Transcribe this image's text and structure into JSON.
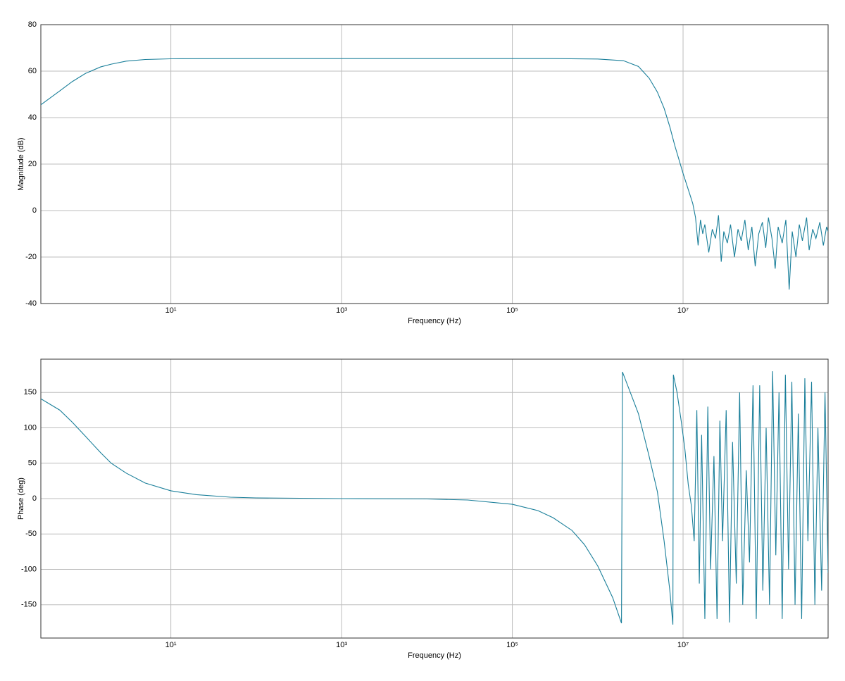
{
  "chart_data": [
    {
      "type": "line",
      "x_label": "Frequency (Hz)",
      "y_label": "Magnitude (dB)",
      "log_x": true,
      "grid": true,
      "xlim": [
        0.3,
        500000000
      ],
      "ylim": [
        -40,
        80
      ],
      "xticks": [
        {
          "value": 10,
          "label": "10¹"
        },
        {
          "value": 1000,
          "label": "10³"
        },
        {
          "value": 100000,
          "label": "10⁵"
        },
        {
          "value": 10000000,
          "label": "10⁷"
        }
      ],
      "yticks": [
        -40,
        -20,
        0,
        20,
        40,
        60,
        80
      ],
      "x": [
        0.3,
        0.5,
        0.7,
        1,
        1.5,
        2,
        3,
        5,
        10,
        100,
        1000,
        10000,
        100000,
        300000,
        1000000,
        2000000,
        3000000,
        4000000,
        5000000,
        6000000,
        7000000,
        8000000,
        10000000,
        12000000,
        13000000,
        14000000,
        15000000,
        16000000,
        17000000,
        18000000,
        20000000,
        22000000,
        24000000,
        26000000,
        28000000,
        30000000,
        33000000,
        36000000,
        40000000,
        44000000,
        48000000,
        53000000,
        58000000,
        64000000,
        70000000,
        77000000,
        85000000,
        93000000,
        100000000,
        110000000,
        120000000,
        130000000,
        145000000,
        160000000,
        175000000,
        190000000,
        210000000,
        230000000,
        250000000,
        280000000,
        300000000,
        330000000,
        360000000,
        400000000,
        440000000,
        480000000,
        500000000
      ],
      "series": [
        {
          "color": "#1a7f9a",
          "values": [
            45.5,
            51.5,
            55.5,
            59,
            61.8,
            63,
            64.3,
            65,
            65.3,
            65.4,
            65.4,
            65.4,
            65.4,
            65.4,
            65.2,
            64.5,
            62,
            57,
            51,
            44,
            36,
            28,
            16,
            7,
            3,
            -3,
            -15,
            -4,
            -10,
            -6,
            -18,
            -8,
            -12,
            -2,
            -22,
            -9,
            -14,
            -6,
            -20,
            -8,
            -13,
            -4,
            -17,
            -7,
            -24,
            -10,
            -5,
            -16,
            -3,
            -12,
            -25,
            -7,
            -14,
            -4,
            -34,
            -9,
            -20,
            -6,
            -13,
            -3,
            -17,
            -8,
            -12,
            -5,
            -15,
            -7,
            -9
          ]
        }
      ]
    },
    {
      "type": "line",
      "x_label": "Frequency (Hz)",
      "y_label": "Phase (deg)",
      "log_x": true,
      "grid": true,
      "xlim": [
        0.3,
        500000000
      ],
      "ylim": [
        -197,
        197
      ],
      "xticks": [
        {
          "value": 10,
          "label": "10¹"
        },
        {
          "value": 1000,
          "label": "10³"
        },
        {
          "value": 100000,
          "label": "10⁵"
        },
        {
          "value": 10000000,
          "label": "10⁷"
        }
      ],
      "yticks": [
        -150,
        -100,
        -50,
        0,
        50,
        100,
        150
      ],
      "x": [
        0.3,
        0.5,
        0.7,
        1,
        1.5,
        2,
        3,
        5,
        10,
        20,
        50,
        100,
        1000,
        10000,
        30000,
        100000,
        200000,
        300000,
        500000,
        700000,
        1000000,
        1500000,
        1900000,
        1950000,
        3000000,
        4000000,
        5000000,
        6000000,
        7000000,
        7600000,
        7700000,
        8500000,
        9500000,
        10500000,
        11500000,
        12500000,
        13500000,
        14500000,
        15500000,
        16500000,
        18000000,
        19500000,
        21000000,
        23000000,
        25000000,
        27000000,
        29000000,
        32000000,
        35000000,
        38000000,
        42000000,
        46000000,
        50000000,
        55000000,
        60000000,
        66000000,
        72000000,
        79000000,
        86000000,
        94000000,
        103000000,
        112000000,
        122000000,
        133000000,
        145000000,
        158000000,
        172000000,
        188000000,
        205000000,
        224000000,
        245000000,
        267000000,
        290000000,
        320000000,
        350000000,
        380000000,
        420000000,
        460000000,
        500000000
      ],
      "series": [
        {
          "color": "#1a7f9a",
          "values": [
            141,
            125,
            108,
            88,
            65,
            50,
            36,
            22,
            11,
            5.5,
            2,
            1,
            0,
            -0.5,
            -2,
            -8,
            -17,
            -27,
            -45,
            -65,
            -95,
            -140,
            -176,
            179,
            120,
            60,
            10,
            -60,
            -130,
            -178,
            175,
            150,
            110,
            70,
            20,
            -10,
            -60,
            125,
            -120,
            90,
            -170,
            130,
            -100,
            60,
            -170,
            110,
            -60,
            125,
            -175,
            80,
            -120,
            150,
            -150,
            40,
            -90,
            160,
            -170,
            160,
            -130,
            100,
            -150,
            180,
            -80,
            150,
            -170,
            175,
            -100,
            165,
            -150,
            120,
            -170,
            170,
            -60,
            165,
            -150,
            100,
            -130,
            150,
            -105
          ]
        }
      ]
    }
  ]
}
